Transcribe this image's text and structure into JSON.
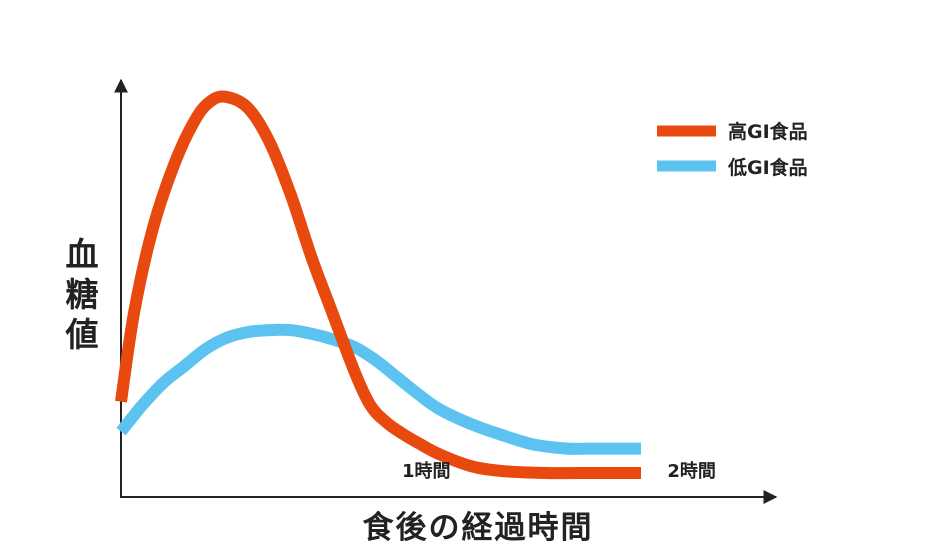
{
  "chart_data": {
    "type": "line",
    "ylabel": [
      "血",
      "糖",
      "値"
    ],
    "xlabel": "食後の経過時間",
    "xlim": [
      0,
      2.42
    ],
    "ylim": [
      0,
      1
    ],
    "x_ticks": [
      {
        "value": 1.0,
        "label": "1時間"
      },
      {
        "value": 2.0,
        "label": "2時間"
      }
    ],
    "grid": false,
    "legend_position": "top-right",
    "series": [
      {
        "name": "高GI食品",
        "color": "#E8490F",
        "x": [
          0,
          0.05,
          0.12,
          0.2,
          0.28,
          0.34,
          0.4,
          0.48,
          0.56,
          0.64,
          0.72,
          0.8,
          0.88,
          0.94,
          1.0,
          1.06,
          1.12,
          1.2,
          1.32,
          1.44,
          1.6,
          1.72,
          1.84,
          1.96
        ],
        "y": [
          0.19,
          0.43,
          0.65,
          0.82,
          0.94,
          0.99,
          1.0,
          0.97,
          0.88,
          0.74,
          0.57,
          0.42,
          0.27,
          0.18,
          0.135,
          0.105,
          0.08,
          0.05,
          0.018,
          0.005,
          0.0,
          0.0,
          0.0,
          0.0
        ]
      },
      {
        "name": "低GI食品",
        "color": "#5CC3F0",
        "x": [
          0,
          0.08,
          0.16,
          0.24,
          0.32,
          0.4,
          0.48,
          0.56,
          0.64,
          0.72,
          0.8,
          0.88,
          0.96,
          1.04,
          1.12,
          1.2,
          1.32,
          1.44,
          1.56,
          1.68,
          1.76,
          1.84,
          1.92,
          1.96
        ],
        "y": [
          0.11,
          0.18,
          0.24,
          0.285,
          0.33,
          0.36,
          0.375,
          0.38,
          0.38,
          0.37,
          0.355,
          0.335,
          0.3,
          0.255,
          0.21,
          0.17,
          0.13,
          0.1,
          0.075,
          0.065,
          0.065,
          0.065,
          0.065,
          0.065
        ]
      }
    ]
  }
}
